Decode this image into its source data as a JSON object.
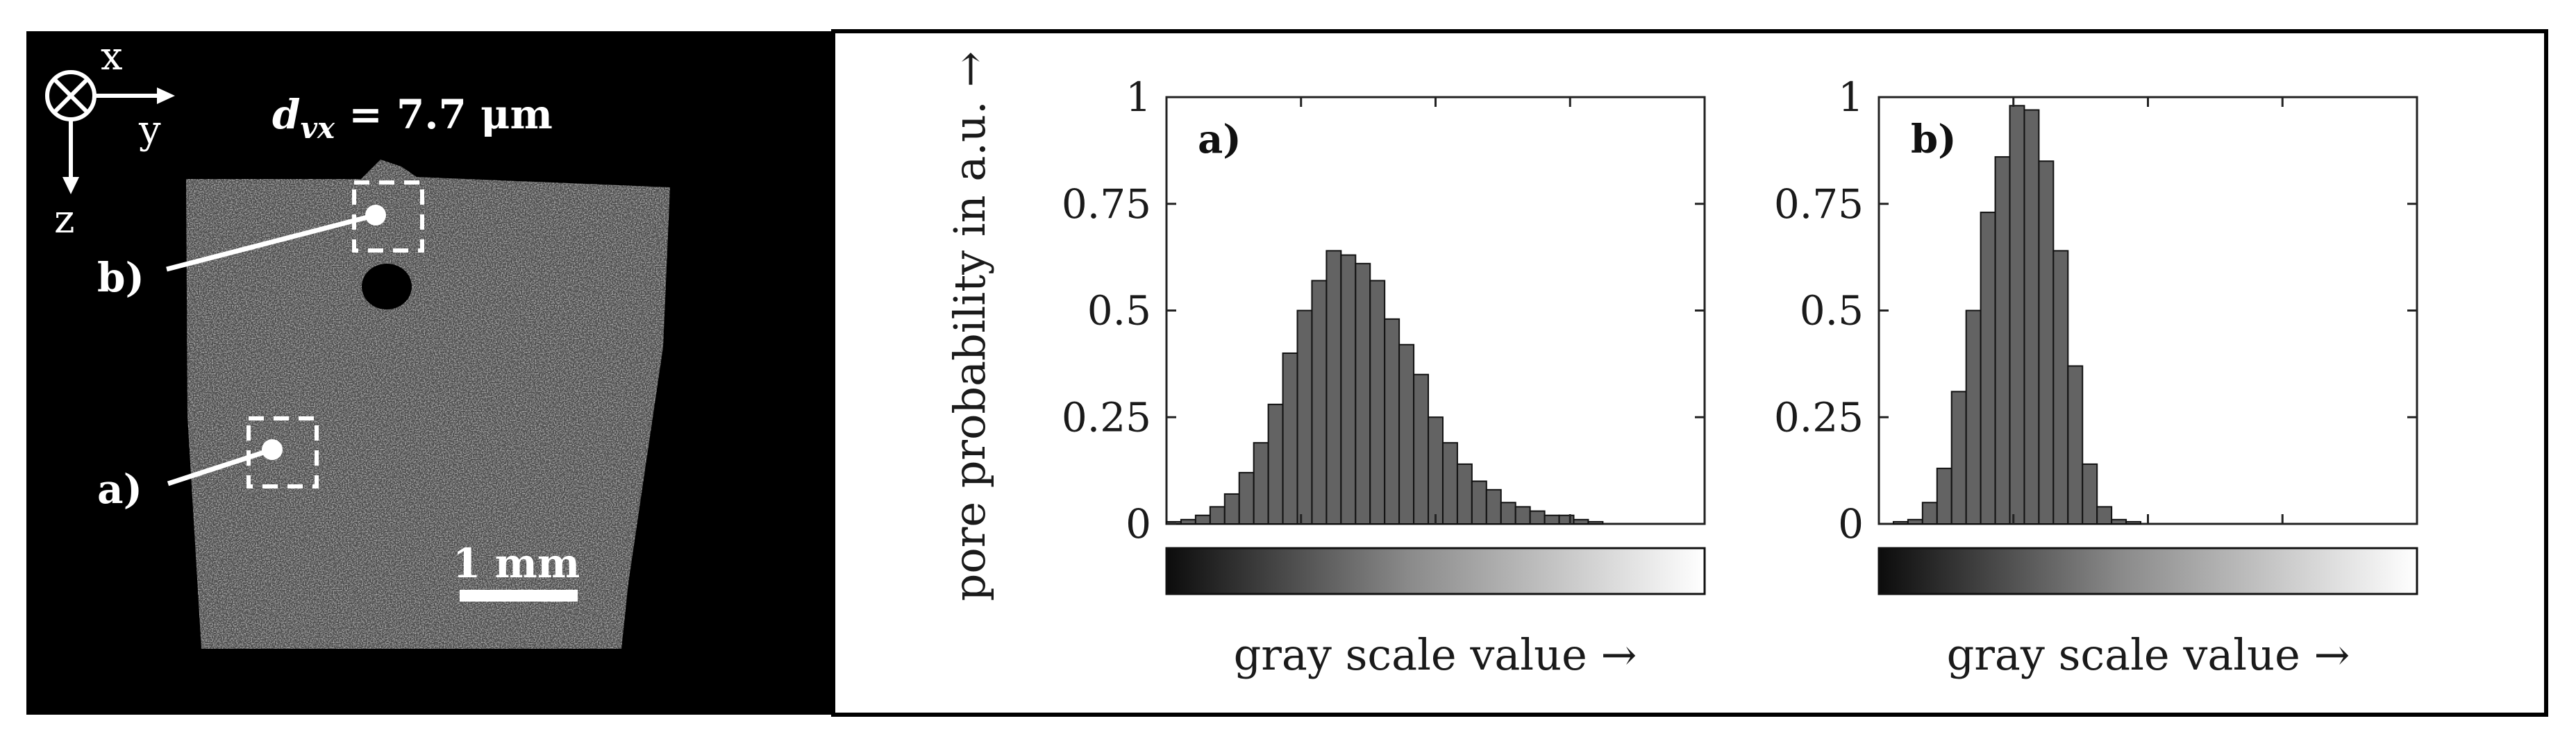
{
  "figure": {
    "axes_labels": {
      "x": "x",
      "y": "y",
      "z": "z"
    },
    "voxel_label_main": "d",
    "voxel_label_sub": "vx",
    "voxel_value": " = 7.7 μm",
    "label_a": "a)",
    "label_b": "b)",
    "scale_bar_label": "1 mm",
    "colors": {
      "background_panel": "#000000",
      "bar_fill": "#636363",
      "bar_stroke": "#111111",
      "annotation": "#ffffff"
    }
  },
  "chart_data": [
    {
      "type": "bar",
      "panel_label": "a)",
      "ylabel": "pore probability in a.u. →",
      "xlabel": "gray scale value →",
      "ylim": [
        0,
        1
      ],
      "yticks": [
        "0",
        "0.25",
        "0.5",
        "0.75",
        "1"
      ],
      "bins": 37,
      "values": [
        0.005,
        0.01,
        0.02,
        0.04,
        0.07,
        0.12,
        0.19,
        0.28,
        0.4,
        0.5,
        0.57,
        0.64,
        0.63,
        0.61,
        0.57,
        0.48,
        0.42,
        0.35,
        0.25,
        0.19,
        0.14,
        0.1,
        0.08,
        0.05,
        0.04,
        0.03,
        0.02,
        0.02,
        0.01,
        0.005,
        0,
        0,
        0,
        0,
        0,
        0,
        0
      ],
      "grid": false
    },
    {
      "type": "bar",
      "panel_label": "b)",
      "ylabel": "",
      "xlabel": "gray scale value →",
      "ylim": [
        0,
        1
      ],
      "yticks": [
        "0",
        "0.25",
        "0.5",
        "0.75",
        "1"
      ],
      "bins": 37,
      "values": [
        0,
        0.005,
        0.01,
        0.05,
        0.13,
        0.31,
        0.5,
        0.73,
        0.86,
        0.98,
        0.97,
        0.85,
        0.64,
        0.37,
        0.14,
        0.04,
        0.01,
        0.005,
        0,
        0,
        0,
        0,
        0,
        0,
        0,
        0,
        0,
        0,
        0,
        0,
        0,
        0,
        0,
        0,
        0,
        0,
        0
      ],
      "grid": false
    }
  ]
}
